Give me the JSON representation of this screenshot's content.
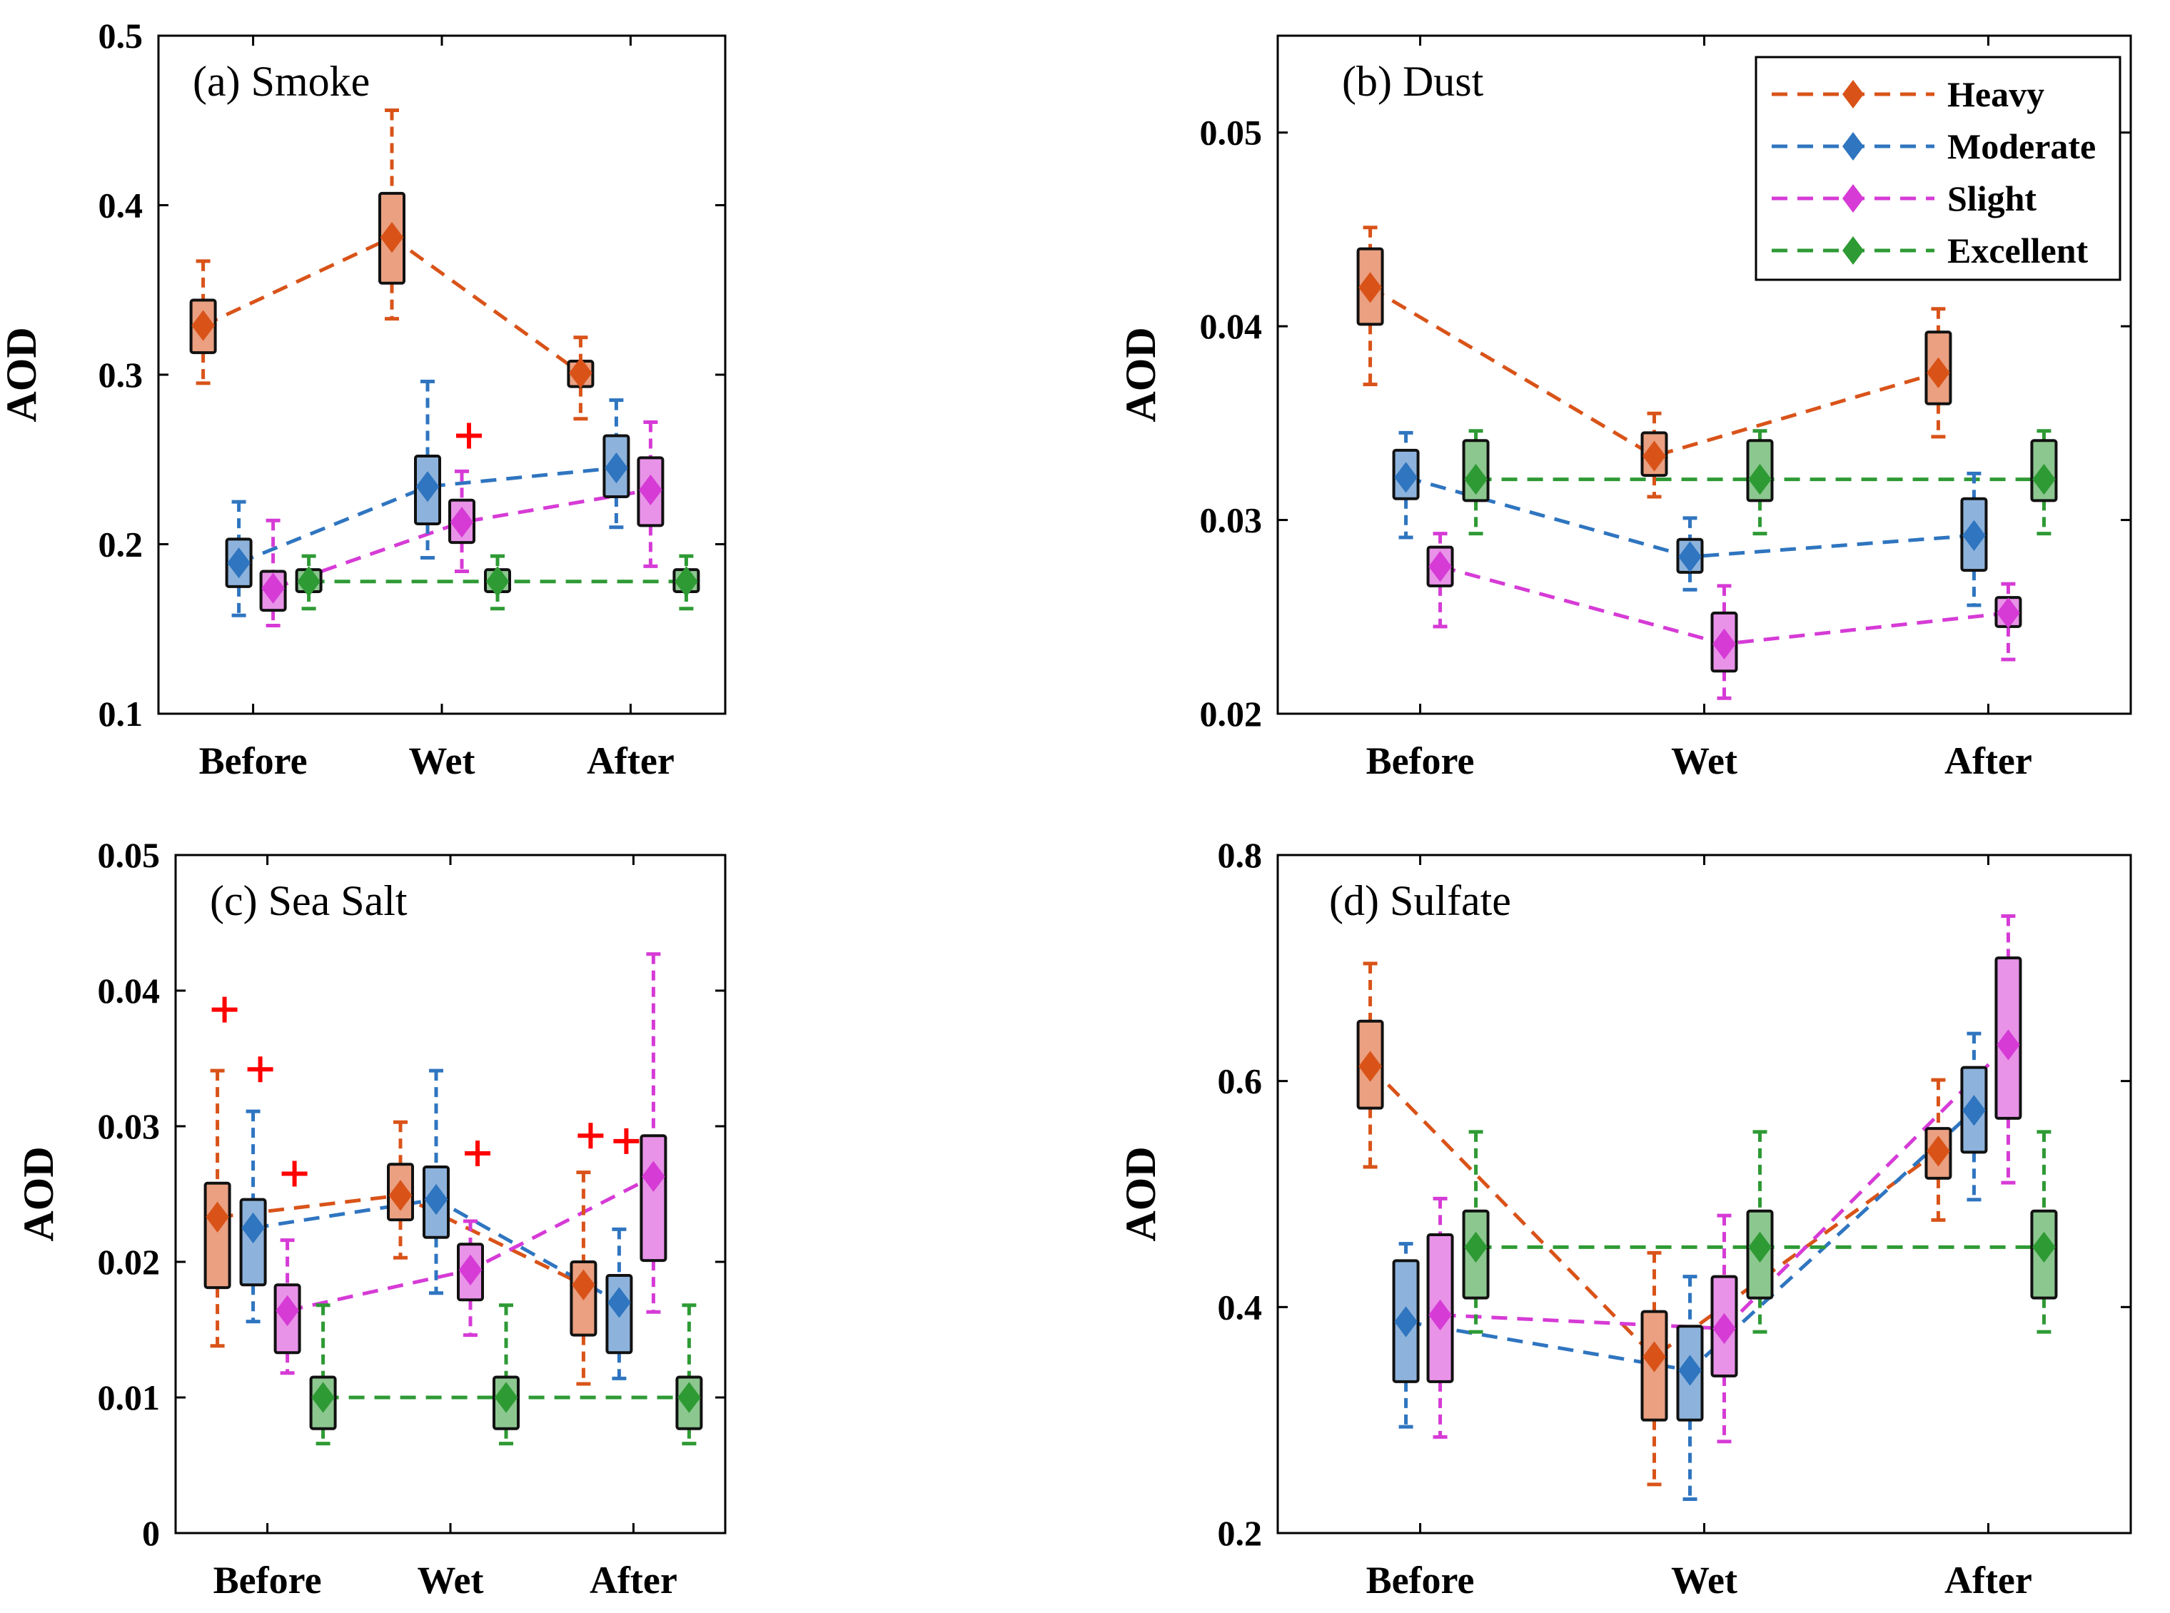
{
  "figure_description_colors": {
    "Heavy": "#d95319",
    "Moderate": "#2f75c0",
    "Slight": "#d63bd6",
    "Excellent": "#2e9a34",
    "outlier": "#ff0000"
  },
  "legend": {
    "entries": [
      "Heavy",
      "Moderate",
      "Slight",
      "Excellent"
    ],
    "placement": "top-right"
  },
  "chart_data": [
    {
      "type": "box",
      "title": "(a) Smoke",
      "ylabel": "AOD",
      "xlabel": "",
      "categories": [
        "Before",
        "Wet",
        "After"
      ],
      "ylim": [
        0.1,
        0.5
      ],
      "yticks": [
        0.1,
        0.2,
        0.3,
        0.4,
        0.5
      ],
      "ytick_labels": [
        "0.1",
        "0.2",
        "0.3",
        "0.4",
        "0.5"
      ],
      "series": [
        {
          "name": "Heavy",
          "mean": [
            0.329,
            0.381,
            0.301
          ],
          "box": [
            [
              0.313,
              0.344
            ],
            [
              0.354,
              0.407
            ],
            [
              0.293,
              0.308
            ]
          ],
          "whisker": [
            [
              0.295,
              0.367
            ],
            [
              0.333,
              0.456
            ],
            [
              0.274,
              0.322
            ]
          ],
          "outliers": [
            [],
            [],
            []
          ]
        },
        {
          "name": "Moderate",
          "mean": [
            0.189,
            0.234,
            0.245
          ],
          "box": [
            [
              0.175,
              0.203
            ],
            [
              0.212,
              0.252
            ],
            [
              0.228,
              0.264
            ]
          ],
          "whisker": [
            [
              0.158,
              0.225
            ],
            [
              0.192,
              0.296
            ],
            [
              0.21,
              0.285
            ]
          ],
          "outliers": [
            [],
            [],
            []
          ]
        },
        {
          "name": "Slight",
          "mean": [
            0.174,
            0.213,
            0.232
          ],
          "box": [
            [
              0.161,
              0.184
            ],
            [
              0.201,
              0.226
            ],
            [
              0.211,
              0.251
            ]
          ],
          "whisker": [
            [
              0.152,
              0.214
            ],
            [
              0.184,
              0.243
            ],
            [
              0.187,
              0.272
            ]
          ],
          "outliers": [
            [],
            [
              0.264
            ],
            []
          ]
        },
        {
          "name": "Excellent",
          "mean": [
            0.178,
            0.178,
            0.178
          ],
          "box": [
            [
              0.172,
              0.185
            ],
            [
              0.172,
              0.185
            ],
            [
              0.172,
              0.185
            ]
          ],
          "whisker": [
            [
              0.162,
              0.193
            ],
            [
              0.162,
              0.193
            ],
            [
              0.162,
              0.193
            ]
          ],
          "outliers": [
            [],
            [],
            []
          ]
        }
      ]
    },
    {
      "type": "box",
      "title": "(b) Dust",
      "ylabel": "AOD",
      "xlabel": "",
      "categories": [
        "Before",
        "Wet",
        "After"
      ],
      "ylim": [
        0.02,
        0.055
      ],
      "yticks": [
        0.02,
        0.03,
        0.04,
        0.05
      ],
      "ytick_labels": [
        "0.02",
        "0.03",
        "0.04",
        "0.05"
      ],
      "series": [
        {
          "name": "Heavy",
          "mean": [
            0.042,
            0.0333,
            0.0376
          ],
          "box": [
            [
              0.0401,
              0.044
            ],
            [
              0.0323,
              0.0345
            ],
            [
              0.036,
              0.0397
            ]
          ],
          "whisker": [
            [
              0.037,
              0.0451
            ],
            [
              0.0312,
              0.0355
            ],
            [
              0.0343,
              0.0409
            ]
          ],
          "outliers": [
            [],
            [],
            []
          ]
        },
        {
          "name": "Moderate",
          "mean": [
            0.0322,
            0.0281,
            0.0292
          ],
          "box": [
            [
              0.0311,
              0.0336
            ],
            [
              0.0273,
              0.029
            ],
            [
              0.0274,
              0.0311
            ]
          ],
          "whisker": [
            [
              0.0291,
              0.0345
            ],
            [
              0.0264,
              0.0301
            ],
            [
              0.0256,
              0.0324
            ]
          ],
          "outliers": [
            [],
            [],
            []
          ]
        },
        {
          "name": "Slight",
          "mean": [
            0.0276,
            0.0236,
            0.0252
          ],
          "box": [
            [
              0.0266,
              0.0286
            ],
            [
              0.0222,
              0.0252
            ],
            [
              0.0245,
              0.026
            ]
          ],
          "whisker": [
            [
              0.0245,
              0.0293
            ],
            [
              0.0208,
              0.0266
            ],
            [
              0.0228,
              0.0267
            ]
          ],
          "outliers": [
            [],
            [],
            []
          ]
        },
        {
          "name": "Excellent",
          "mean": [
            0.0321,
            0.0321,
            0.0321
          ],
          "box": [
            [
              0.031,
              0.0341
            ],
            [
              0.031,
              0.0341
            ],
            [
              0.031,
              0.0341
            ]
          ],
          "whisker": [
            [
              0.0293,
              0.0346
            ],
            [
              0.0293,
              0.0346
            ],
            [
              0.0293,
              0.0346
            ]
          ],
          "outliers": [
            [],
            [],
            []
          ]
        }
      ]
    },
    {
      "type": "box",
      "title": "(c) Sea Salt",
      "ylabel": "AOD",
      "xlabel": "",
      "categories": [
        "Before",
        "Wet",
        "After"
      ],
      "ylim": [
        0,
        0.05
      ],
      "yticks": [
        0,
        0.01,
        0.02,
        0.03,
        0.04,
        0.05
      ],
      "ytick_labels": [
        "0",
        "0.01",
        "0.02",
        "0.03",
        "0.04",
        "0.05"
      ],
      "series": [
        {
          "name": "Heavy",
          "mean": [
            0.0233,
            0.0249,
            0.0183
          ],
          "box": [
            [
              0.0181,
              0.0258
            ],
            [
              0.0231,
              0.0272
            ],
            [
              0.0146,
              0.02
            ]
          ],
          "whisker": [
            [
              0.0138,
              0.0341
            ],
            [
              0.0203,
              0.0303
            ],
            [
              0.011,
              0.0266
            ]
          ],
          "outliers": [
            [
              0.0386
            ],
            [],
            [
              0.0293
            ]
          ]
        },
        {
          "name": "Moderate",
          "mean": [
            0.0225,
            0.0246,
            0.017
          ],
          "box": [
            [
              0.0183,
              0.0246
            ],
            [
              0.0218,
              0.027
            ],
            [
              0.0133,
              0.019
            ]
          ],
          "whisker": [
            [
              0.0156,
              0.0311
            ],
            [
              0.0177,
              0.0341
            ],
            [
              0.0114,
              0.0224
            ]
          ],
          "outliers": [
            [
              0.0342
            ],
            [],
            [
              0.0289
            ]
          ]
        },
        {
          "name": "Slight",
          "mean": [
            0.0164,
            0.0194,
            0.0263
          ],
          "box": [
            [
              0.0133,
              0.0183
            ],
            [
              0.0172,
              0.0213
            ],
            [
              0.0201,
              0.0293
            ]
          ],
          "whisker": [
            [
              0.0118,
              0.0216
            ],
            [
              0.0146,
              0.023
            ],
            [
              0.0163,
              0.0427
            ]
          ],
          "outliers": [
            [
              0.0265
            ],
            [
              0.028
            ],
            []
          ]
        },
        {
          "name": "Excellent",
          "mean": [
            0.01,
            0.01,
            0.01
          ],
          "box": [
            [
              0.0077,
              0.0115
            ],
            [
              0.0077,
              0.0115
            ],
            [
              0.0077,
              0.0115
            ]
          ],
          "whisker": [
            [
              0.0066,
              0.0168
            ],
            [
              0.0066,
              0.0168
            ],
            [
              0.0066,
              0.0168
            ]
          ],
          "outliers": [
            [],
            [],
            []
          ]
        }
      ]
    },
    {
      "type": "box",
      "title": "(d) Sulfate",
      "ylabel": "AOD",
      "xlabel": "",
      "categories": [
        "Before",
        "Wet",
        "After"
      ],
      "ylim": [
        0.2,
        0.8
      ],
      "yticks": [
        0.2,
        0.4,
        0.6,
        0.8
      ],
      "ytick_labels": [
        "0.2",
        "0.4",
        "0.6",
        "0.8"
      ],
      "series": [
        {
          "name": "Heavy",
          "mean": [
            0.613,
            0.356,
            0.538
          ],
          "box": [
            [
              0.576,
              0.653
            ],
            [
              0.3,
              0.396
            ],
            [
              0.514,
              0.558
            ]
          ],
          "whisker": [
            [
              0.524,
              0.704
            ],
            [
              0.243,
              0.448
            ],
            [
              0.477,
              0.601
            ]
          ],
          "outliers": [
            [],
            [],
            []
          ]
        },
        {
          "name": "Moderate",
          "mean": [
            0.387,
            0.344,
            0.574
          ],
          "box": [
            [
              0.334,
              0.441
            ],
            [
              0.3,
              0.383
            ],
            [
              0.537,
              0.612
            ]
          ],
          "whisker": [
            [
              0.294,
              0.456
            ],
            [
              0.23,
              0.427
            ],
            [
              0.495,
              0.642
            ]
          ],
          "outliers": [
            [],
            [],
            []
          ]
        },
        {
          "name": "Slight",
          "mean": [
            0.393,
            0.381,
            0.632
          ],
          "box": [
            [
              0.334,
              0.464
            ],
            [
              0.339,
              0.427
            ],
            [
              0.567,
              0.709
            ]
          ],
          "whisker": [
            [
              0.285,
              0.496
            ],
            [
              0.281,
              0.481
            ],
            [
              0.51,
              0.746
            ]
          ],
          "outliers": [
            [],
            [],
            []
          ]
        },
        {
          "name": "Excellent",
          "mean": [
            0.453,
            0.453,
            0.453
          ],
          "box": [
            [
              0.408,
              0.485
            ],
            [
              0.408,
              0.485
            ],
            [
              0.408,
              0.485
            ]
          ],
          "whisker": [
            [
              0.378,
              0.555
            ],
            [
              0.378,
              0.555
            ],
            [
              0.378,
              0.555
            ]
          ],
          "outliers": [
            [],
            [],
            []
          ]
        }
      ]
    }
  ]
}
